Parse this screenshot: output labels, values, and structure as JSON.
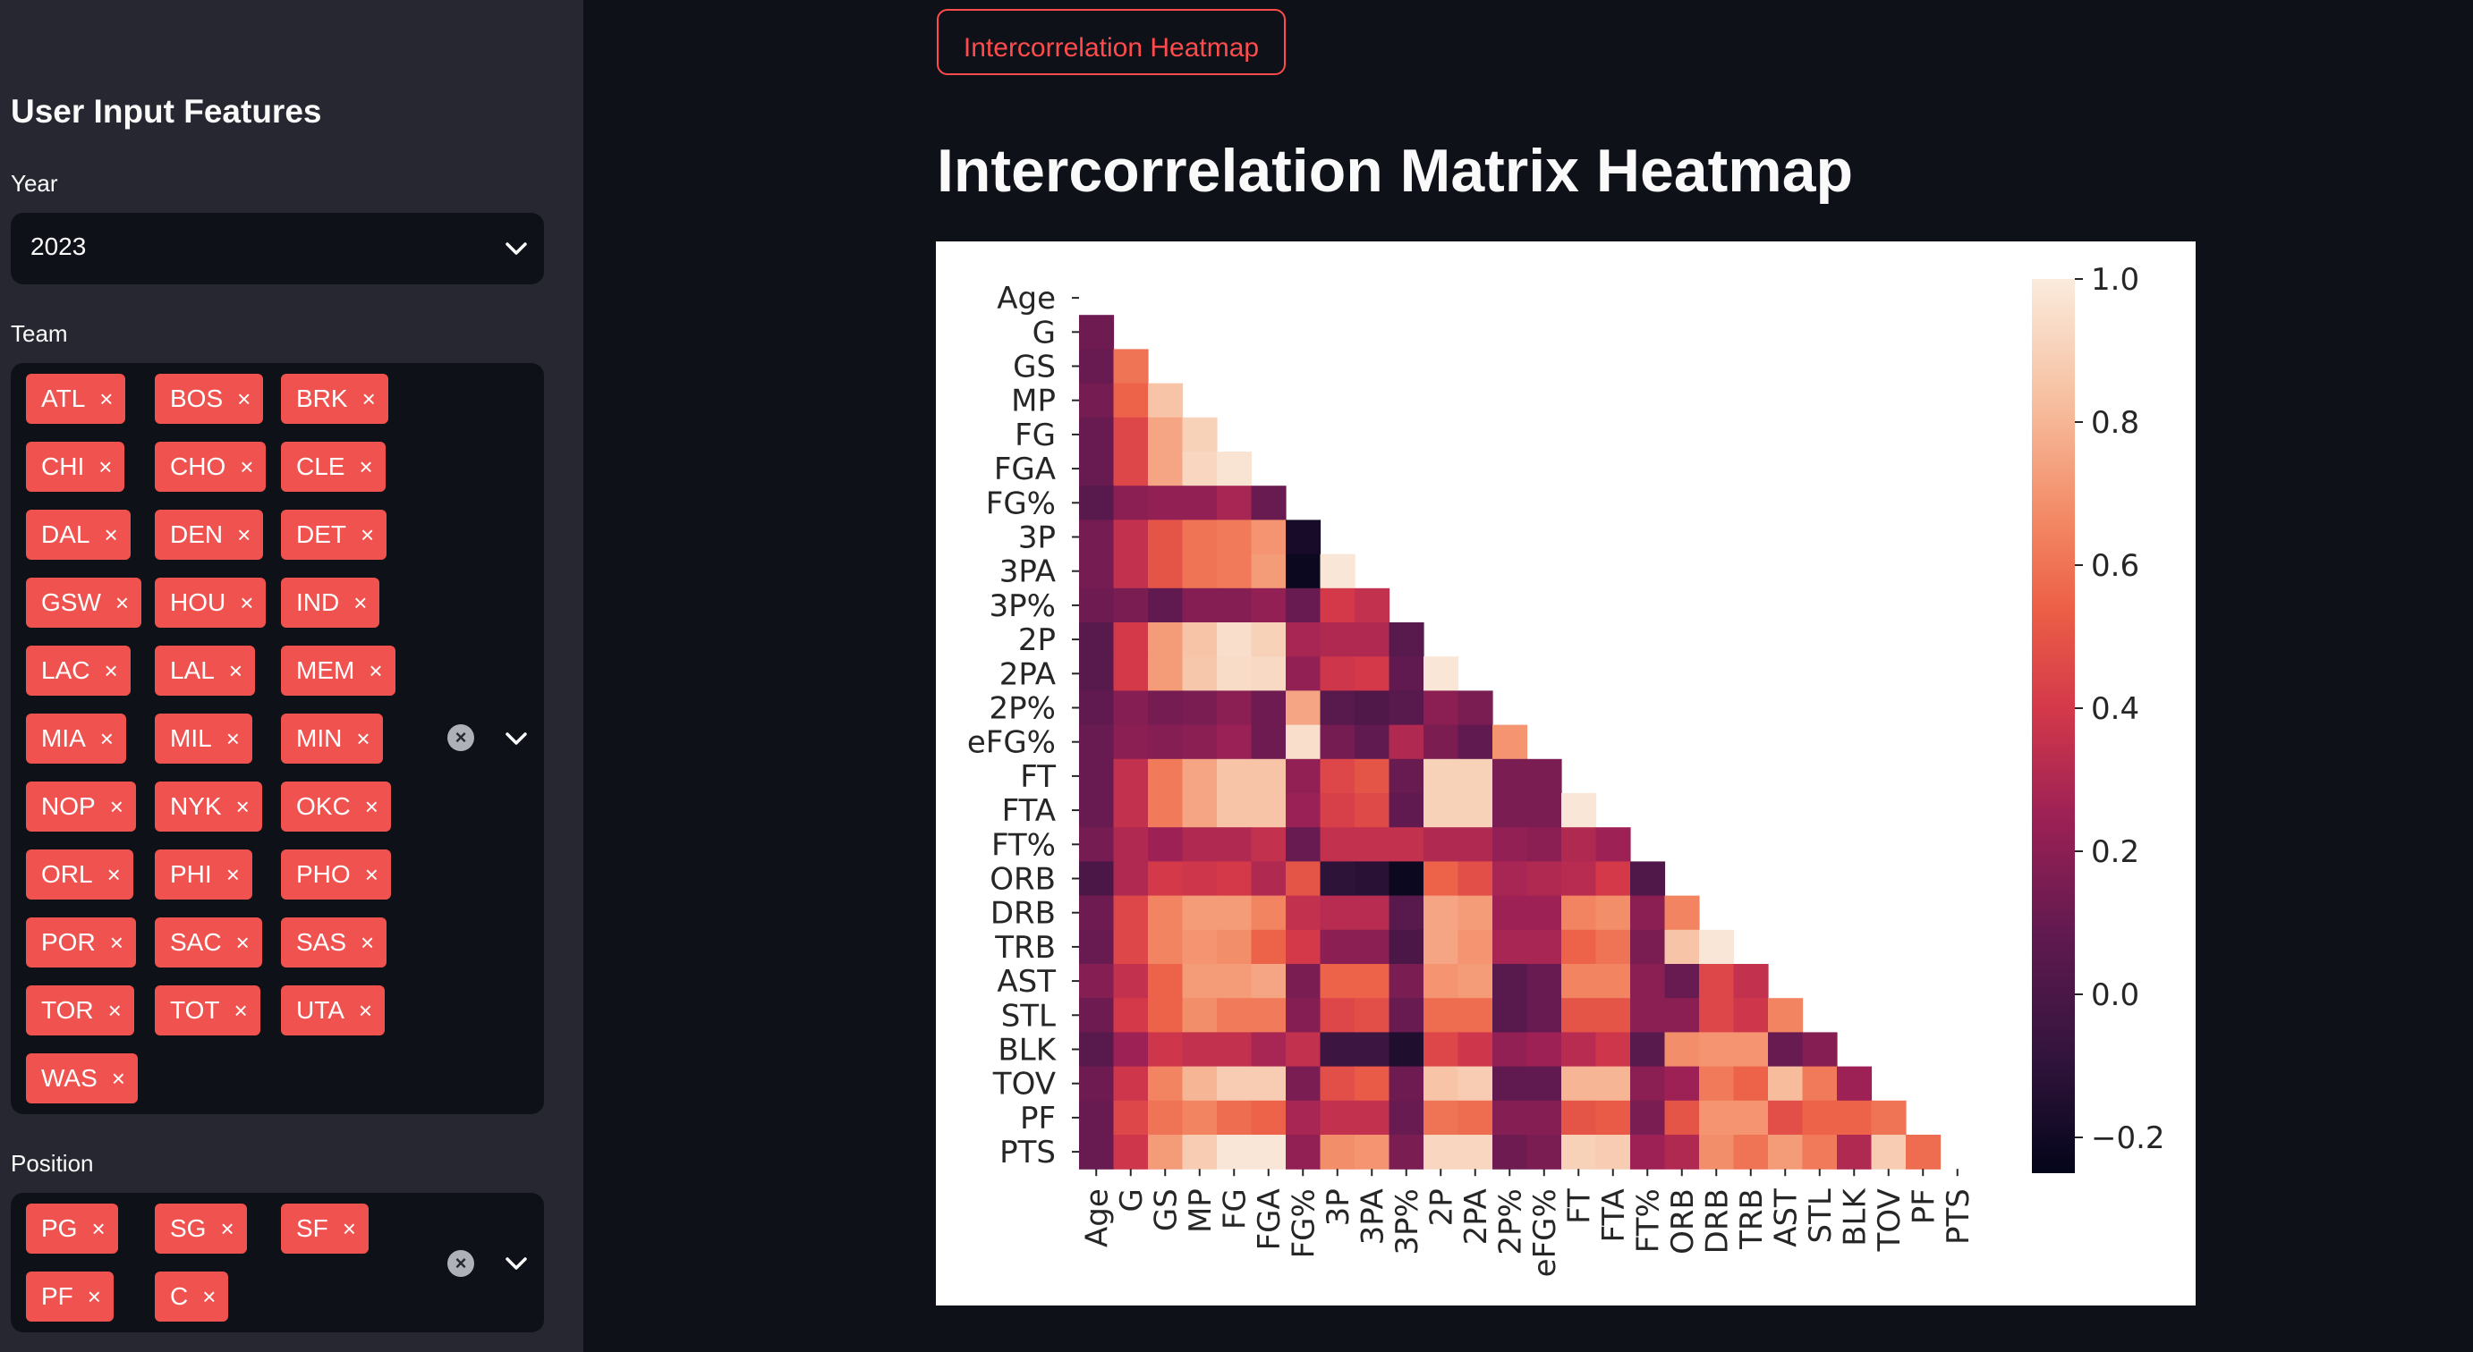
{
  "sidebar": {
    "heading": "User Input Features",
    "year": {
      "label": "Year",
      "value": "2023"
    },
    "team": {
      "label": "Team",
      "selected": [
        "ATL",
        "BOS",
        "BRK",
        "CHI",
        "CHO",
        "CLE",
        "DAL",
        "DEN",
        "DET",
        "GSW",
        "HOU",
        "IND",
        "LAC",
        "LAL",
        "MEM",
        "MIA",
        "MIL",
        "MIN",
        "NOP",
        "NYK",
        "OKC",
        "ORL",
        "PHI",
        "PHO",
        "POR",
        "SAC",
        "SAS",
        "TOR",
        "TOT",
        "UTA",
        "WAS"
      ]
    },
    "position": {
      "label": "Position",
      "selected": [
        "PG",
        "SG",
        "SF",
        "PF",
        "C"
      ]
    },
    "remove_glyph": "×",
    "clear_glyph": "×"
  },
  "main": {
    "button_label": "Intercorrelation Heatmap",
    "title": "Intercorrelation Matrix Heatmap"
  },
  "colors": {
    "background": "#0e1117",
    "sidebar": "#262730",
    "accent": "#ff4b4b",
    "tag": "#f0534f"
  },
  "chart_data": {
    "type": "heatmap",
    "variables": [
      "Age",
      "G",
      "GS",
      "MP",
      "FG",
      "FGA",
      "FG%",
      "3P",
      "3PA",
      "3P%",
      "2P",
      "2PA",
      "2P%",
      "eFG%",
      "FT",
      "FTA",
      "FT%",
      "ORB",
      "DRB",
      "TRB",
      "AST",
      "STL",
      "BLK",
      "TOV",
      "PF",
      "PTS"
    ],
    "mask": "upper-triangle",
    "colormap": "rocket",
    "vmin": -0.25,
    "vmax": 1.0,
    "colorbar_ticks": [
      1.0,
      0.8,
      0.6,
      0.4,
      0.2,
      0.0,
      -0.2
    ],
    "colorbar_tick_labels": [
      "1.0",
      "0.8",
      "0.6",
      "0.4",
      "0.2",
      "0.0",
      "−0.2"
    ],
    "lower_triangle_rows": [
      [],
      [
        0.12
      ],
      [
        0.1,
        0.6
      ],
      [
        0.14,
        0.55,
        0.85
      ],
      [
        0.1,
        0.45,
        0.75,
        0.9
      ],
      [
        0.1,
        0.45,
        0.75,
        0.92,
        0.97
      ],
      [
        0.05,
        0.2,
        0.22,
        0.22,
        0.28,
        0.1
      ],
      [
        0.14,
        0.35,
        0.5,
        0.6,
        0.62,
        0.7,
        -0.18
      ],
      [
        0.14,
        0.35,
        0.5,
        0.6,
        0.62,
        0.72,
        -0.22,
        0.98
      ],
      [
        0.12,
        0.15,
        0.08,
        0.18,
        0.18,
        0.22,
        0.1,
        0.4,
        0.35
      ],
      [
        0.05,
        0.4,
        0.72,
        0.85,
        0.95,
        0.9,
        0.28,
        0.3,
        0.3,
        0.05
      ],
      [
        0.05,
        0.4,
        0.72,
        0.86,
        0.94,
        0.93,
        0.22,
        0.38,
        0.4,
        0.08,
        0.98
      ],
      [
        0.08,
        0.18,
        0.14,
        0.15,
        0.2,
        0.12,
        0.75,
        0.05,
        0.02,
        0.05,
        0.2,
        0.15
      ],
      [
        0.1,
        0.2,
        0.18,
        0.2,
        0.24,
        0.12,
        0.95,
        0.14,
        0.08,
        0.3,
        0.16,
        0.08,
        0.7
      ],
      [
        0.1,
        0.35,
        0.62,
        0.75,
        0.85,
        0.85,
        0.22,
        0.45,
        0.5,
        0.1,
        0.9,
        0.9,
        0.15,
        0.15
      ],
      [
        0.1,
        0.35,
        0.62,
        0.75,
        0.85,
        0.85,
        0.24,
        0.42,
        0.46,
        0.08,
        0.9,
        0.9,
        0.15,
        0.15,
        0.98
      ],
      [
        0.14,
        0.3,
        0.25,
        0.3,
        0.3,
        0.35,
        0.1,
        0.35,
        0.35,
        0.35,
        0.3,
        0.3,
        0.22,
        0.2,
        0.3,
        0.25
      ],
      [
        0.0,
        0.3,
        0.4,
        0.38,
        0.4,
        0.3,
        0.5,
        -0.1,
        -0.12,
        -0.22,
        0.55,
        0.48,
        0.28,
        0.3,
        0.32,
        0.4,
        0.02
      ],
      [
        0.12,
        0.45,
        0.65,
        0.72,
        0.72,
        0.65,
        0.35,
        0.32,
        0.32,
        0.05,
        0.75,
        0.72,
        0.25,
        0.25,
        0.65,
        0.68,
        0.2,
        0.65
      ],
      [
        0.1,
        0.45,
        0.65,
        0.7,
        0.68,
        0.55,
        0.4,
        0.2,
        0.2,
        0.0,
        0.75,
        0.7,
        0.28,
        0.28,
        0.55,
        0.6,
        0.15,
        0.85,
        0.98
      ],
      [
        0.18,
        0.35,
        0.55,
        0.72,
        0.72,
        0.75,
        0.15,
        0.55,
        0.55,
        0.15,
        0.7,
        0.72,
        0.05,
        0.1,
        0.65,
        0.65,
        0.2,
        0.1,
        0.45,
        0.35
      ],
      [
        0.12,
        0.4,
        0.55,
        0.68,
        0.62,
        0.62,
        0.18,
        0.45,
        0.48,
        0.1,
        0.58,
        0.58,
        0.05,
        0.1,
        0.5,
        0.5,
        0.2,
        0.2,
        0.45,
        0.38,
        0.65
      ],
      [
        0.05,
        0.25,
        0.38,
        0.35,
        0.35,
        0.28,
        0.35,
        -0.05,
        -0.05,
        -0.15,
        0.45,
        0.38,
        0.22,
        0.25,
        0.32,
        0.38,
        0.05,
        0.68,
        0.7,
        0.7,
        0.1,
        0.18
      ],
      [
        0.12,
        0.38,
        0.65,
        0.8,
        0.88,
        0.88,
        0.15,
        0.48,
        0.52,
        0.12,
        0.85,
        0.88,
        0.08,
        0.08,
        0.8,
        0.8,
        0.2,
        0.25,
        0.62,
        0.55,
        0.82,
        0.62,
        0.25
      ],
      [
        0.1,
        0.45,
        0.6,
        0.65,
        0.58,
        0.55,
        0.28,
        0.35,
        0.35,
        0.1,
        0.6,
        0.58,
        0.18,
        0.18,
        0.5,
        0.52,
        0.15,
        0.5,
        0.7,
        0.7,
        0.48,
        0.55,
        0.55,
        0.6
      ],
      [
        0.1,
        0.38,
        0.72,
        0.88,
        0.98,
        0.98,
        0.22,
        0.68,
        0.7,
        0.15,
        0.92,
        0.92,
        0.12,
        0.15,
        0.9,
        0.88,
        0.25,
        0.3,
        0.68,
        0.6,
        0.72,
        0.62,
        0.3,
        0.88,
        0.58
      ]
    ]
  }
}
